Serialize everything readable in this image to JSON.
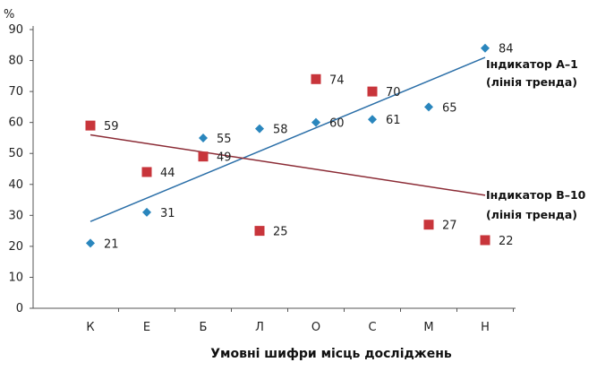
{
  "chart_data": {
    "type": "scatter",
    "xlabel": "Умовні шифри місць досліджень",
    "y_unit": "%",
    "categories": [
      "К",
      "Е",
      "Б",
      "Л",
      "О",
      "С",
      "М",
      "Н"
    ],
    "ylim": [
      0,
      90
    ],
    "yticks": [
      "0",
      "10",
      "20",
      "30",
      "40",
      "50",
      "60",
      "70",
      "80",
      "90"
    ],
    "grid": false,
    "series": [
      {
        "marker": "diamond",
        "color": "#2a86bd",
        "values": [
          21,
          31,
          55,
          58,
          60,
          61,
          65,
          84
        ],
        "trend": {
          "start": 28,
          "end": 81,
          "color": "#2b6fa8"
        }
      },
      {
        "marker": "square",
        "color": "#c8353b",
        "values": [
          59,
          44,
          49,
          25,
          74,
          70,
          27,
          22
        ],
        "trend": {
          "start": 56,
          "end": 36.5,
          "color": "#8b2b35"
        }
      }
    ],
    "annotations": [
      {
        "line1": "Індикатор А–1",
        "line2": "(лінія тренда)"
      },
      {
        "line1": "Індикатор В–10",
        "line2": "(лінія тренда)"
      }
    ]
  }
}
